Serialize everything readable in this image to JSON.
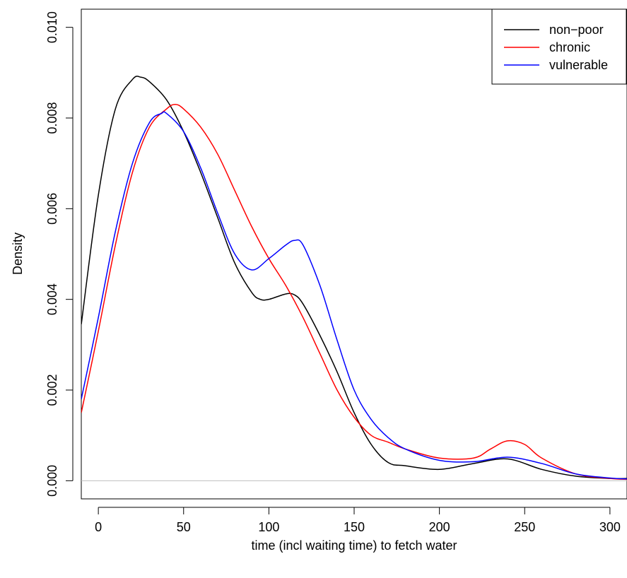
{
  "chart_data": {
    "type": "line",
    "title": "",
    "xlabel": "time (incl waiting time) to fetch water",
    "ylabel": "Density",
    "xlim": [
      -10,
      310
    ],
    "ylim": [
      -0.0004,
      0.0104
    ],
    "x_ticks": [
      0,
      50,
      100,
      150,
      200,
      250,
      300
    ],
    "y_ticks": [
      0.0,
      0.002,
      0.004,
      0.006,
      0.008,
      0.01
    ],
    "x_tick_labels": [
      "0",
      "50",
      "100",
      "150",
      "200",
      "250",
      "300"
    ],
    "y_tick_labels": [
      "0.000",
      "0.002",
      "0.004",
      "0.006",
      "0.008",
      "0.010"
    ],
    "grid": false,
    "zero_line": true,
    "legend_position": "top-right",
    "series": [
      {
        "name": "non−poor",
        "color": "#000000",
        "x": [
          -10,
          0,
          10,
          20,
          25,
          30,
          40,
          50,
          60,
          70,
          80,
          90,
          95,
          100,
          110,
          115,
          120,
          130,
          140,
          150,
          160,
          170,
          180,
          200,
          220,
          240,
          260,
          280,
          300,
          310
        ],
        "y": [
          0.00345,
          0.0063,
          0.0082,
          0.00885,
          0.0089,
          0.0088,
          0.0084,
          0.0077,
          0.0068,
          0.0058,
          0.0048,
          0.00415,
          0.004,
          0.004,
          0.00412,
          0.0041,
          0.0039,
          0.0032,
          0.0024,
          0.0015,
          0.0008,
          0.0004,
          0.00033,
          0.00025,
          0.00038,
          0.00048,
          0.00025,
          0.0001,
          5e-05,
          5e-05
        ]
      },
      {
        "name": "chronic",
        "color": "#ff0000",
        "x": [
          -10,
          0,
          10,
          20,
          30,
          40,
          45,
          50,
          60,
          70,
          80,
          90,
          100,
          110,
          120,
          130,
          140,
          150,
          160,
          170,
          180,
          200,
          220,
          230,
          240,
          250,
          260,
          280,
          300,
          310
        ],
        "y": [
          0.0015,
          0.0033,
          0.0052,
          0.0068,
          0.0078,
          0.0082,
          0.0083,
          0.0082,
          0.0078,
          0.0072,
          0.0064,
          0.0056,
          0.0049,
          0.0043,
          0.0036,
          0.0028,
          0.002,
          0.0014,
          0.001,
          0.00085,
          0.0007,
          0.0005,
          0.0005,
          0.0007,
          0.00088,
          0.0008,
          0.0005,
          0.00015,
          5e-05,
          3e-05
        ]
      },
      {
        "name": "vulnerable",
        "color": "#0000ff",
        "x": [
          -10,
          0,
          10,
          20,
          30,
          37,
          40,
          50,
          60,
          70,
          80,
          90,
          100,
          110,
          115,
          120,
          130,
          140,
          150,
          160,
          170,
          180,
          200,
          220,
          240,
          260,
          280,
          300,
          310
        ],
        "y": [
          0.0018,
          0.0036,
          0.0055,
          0.007,
          0.0079,
          0.0081,
          0.0081,
          0.0077,
          0.0069,
          0.0059,
          0.005,
          0.00465,
          0.0049,
          0.0052,
          0.0053,
          0.0052,
          0.0043,
          0.0031,
          0.002,
          0.00135,
          0.00095,
          0.0007,
          0.00045,
          0.00042,
          0.00052,
          0.00038,
          0.00015,
          6e-05,
          4e-05
        ]
      }
    ]
  }
}
